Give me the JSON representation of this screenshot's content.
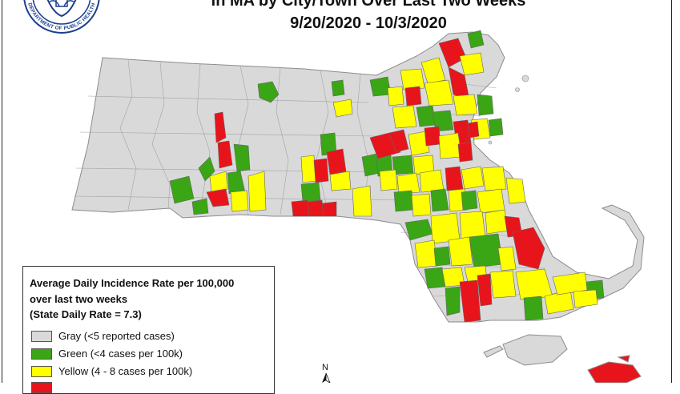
{
  "header": {
    "title_line1": "in MA by City/Town Over Last Two Weeks",
    "title_line2": "9/20/2020 - 10/3/2020"
  },
  "seal": {
    "text": "DEPARTMENT OF PUBLIC HEALTH",
    "icon": "seal-icon"
  },
  "legend": {
    "heading_line1": "Average Daily Incidence Rate per 100,000",
    "heading_line2": "over last two weeks",
    "heading_line3": "(State Daily Rate = 7.3)",
    "items": [
      {
        "label": "Gray (<5 reported cases)",
        "color": "#d9d9d9"
      },
      {
        "label": "Green (<4 cases per 100k)",
        "color": "#3aa515"
      },
      {
        "label": "Yellow (4 - 8 cases per 100k)",
        "color": "#ffff00"
      },
      {
        "label": "",
        "color": "#e8141b"
      }
    ]
  },
  "north_arrow": {
    "label": "N"
  },
  "colors": {
    "gray": "#d9d9d9",
    "green": "#3aa515",
    "yellow": "#ffff00",
    "red": "#e8141b",
    "boundary": "#8c8c8c"
  }
}
